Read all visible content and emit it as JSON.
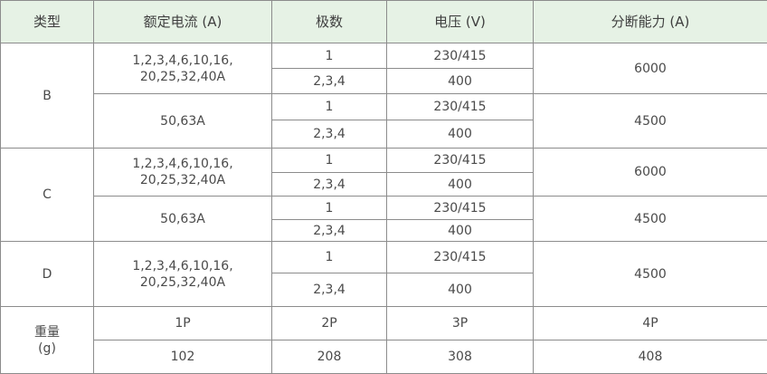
{
  "table": {
    "headers": [
      "类型",
      "额定电流 (A)",
      "极数",
      "电压 (V)",
      "分断能力 (A)"
    ],
    "types": {
      "b": "B",
      "c": "C",
      "d": "D"
    },
    "currents": {
      "full_line1": "1,2,3,4,6,10,16,",
      "full_line2": "20,25,32,40A",
      "large": "50,63A"
    },
    "poles": {
      "single": "1",
      "multi": "2,3,4"
    },
    "voltages": {
      "single": "230/415",
      "multi": "400"
    },
    "breaking": {
      "b_small": "6000",
      "b_large": "4500",
      "c_small": "6000",
      "c_large": "4500",
      "d": "4500"
    },
    "weight": {
      "label_line1": "重量",
      "label_line2": "(g)",
      "poles": [
        "1P",
        "2P",
        "3P",
        "4P"
      ],
      "values": [
        "102",
        "208",
        "308",
        "408"
      ]
    }
  }
}
